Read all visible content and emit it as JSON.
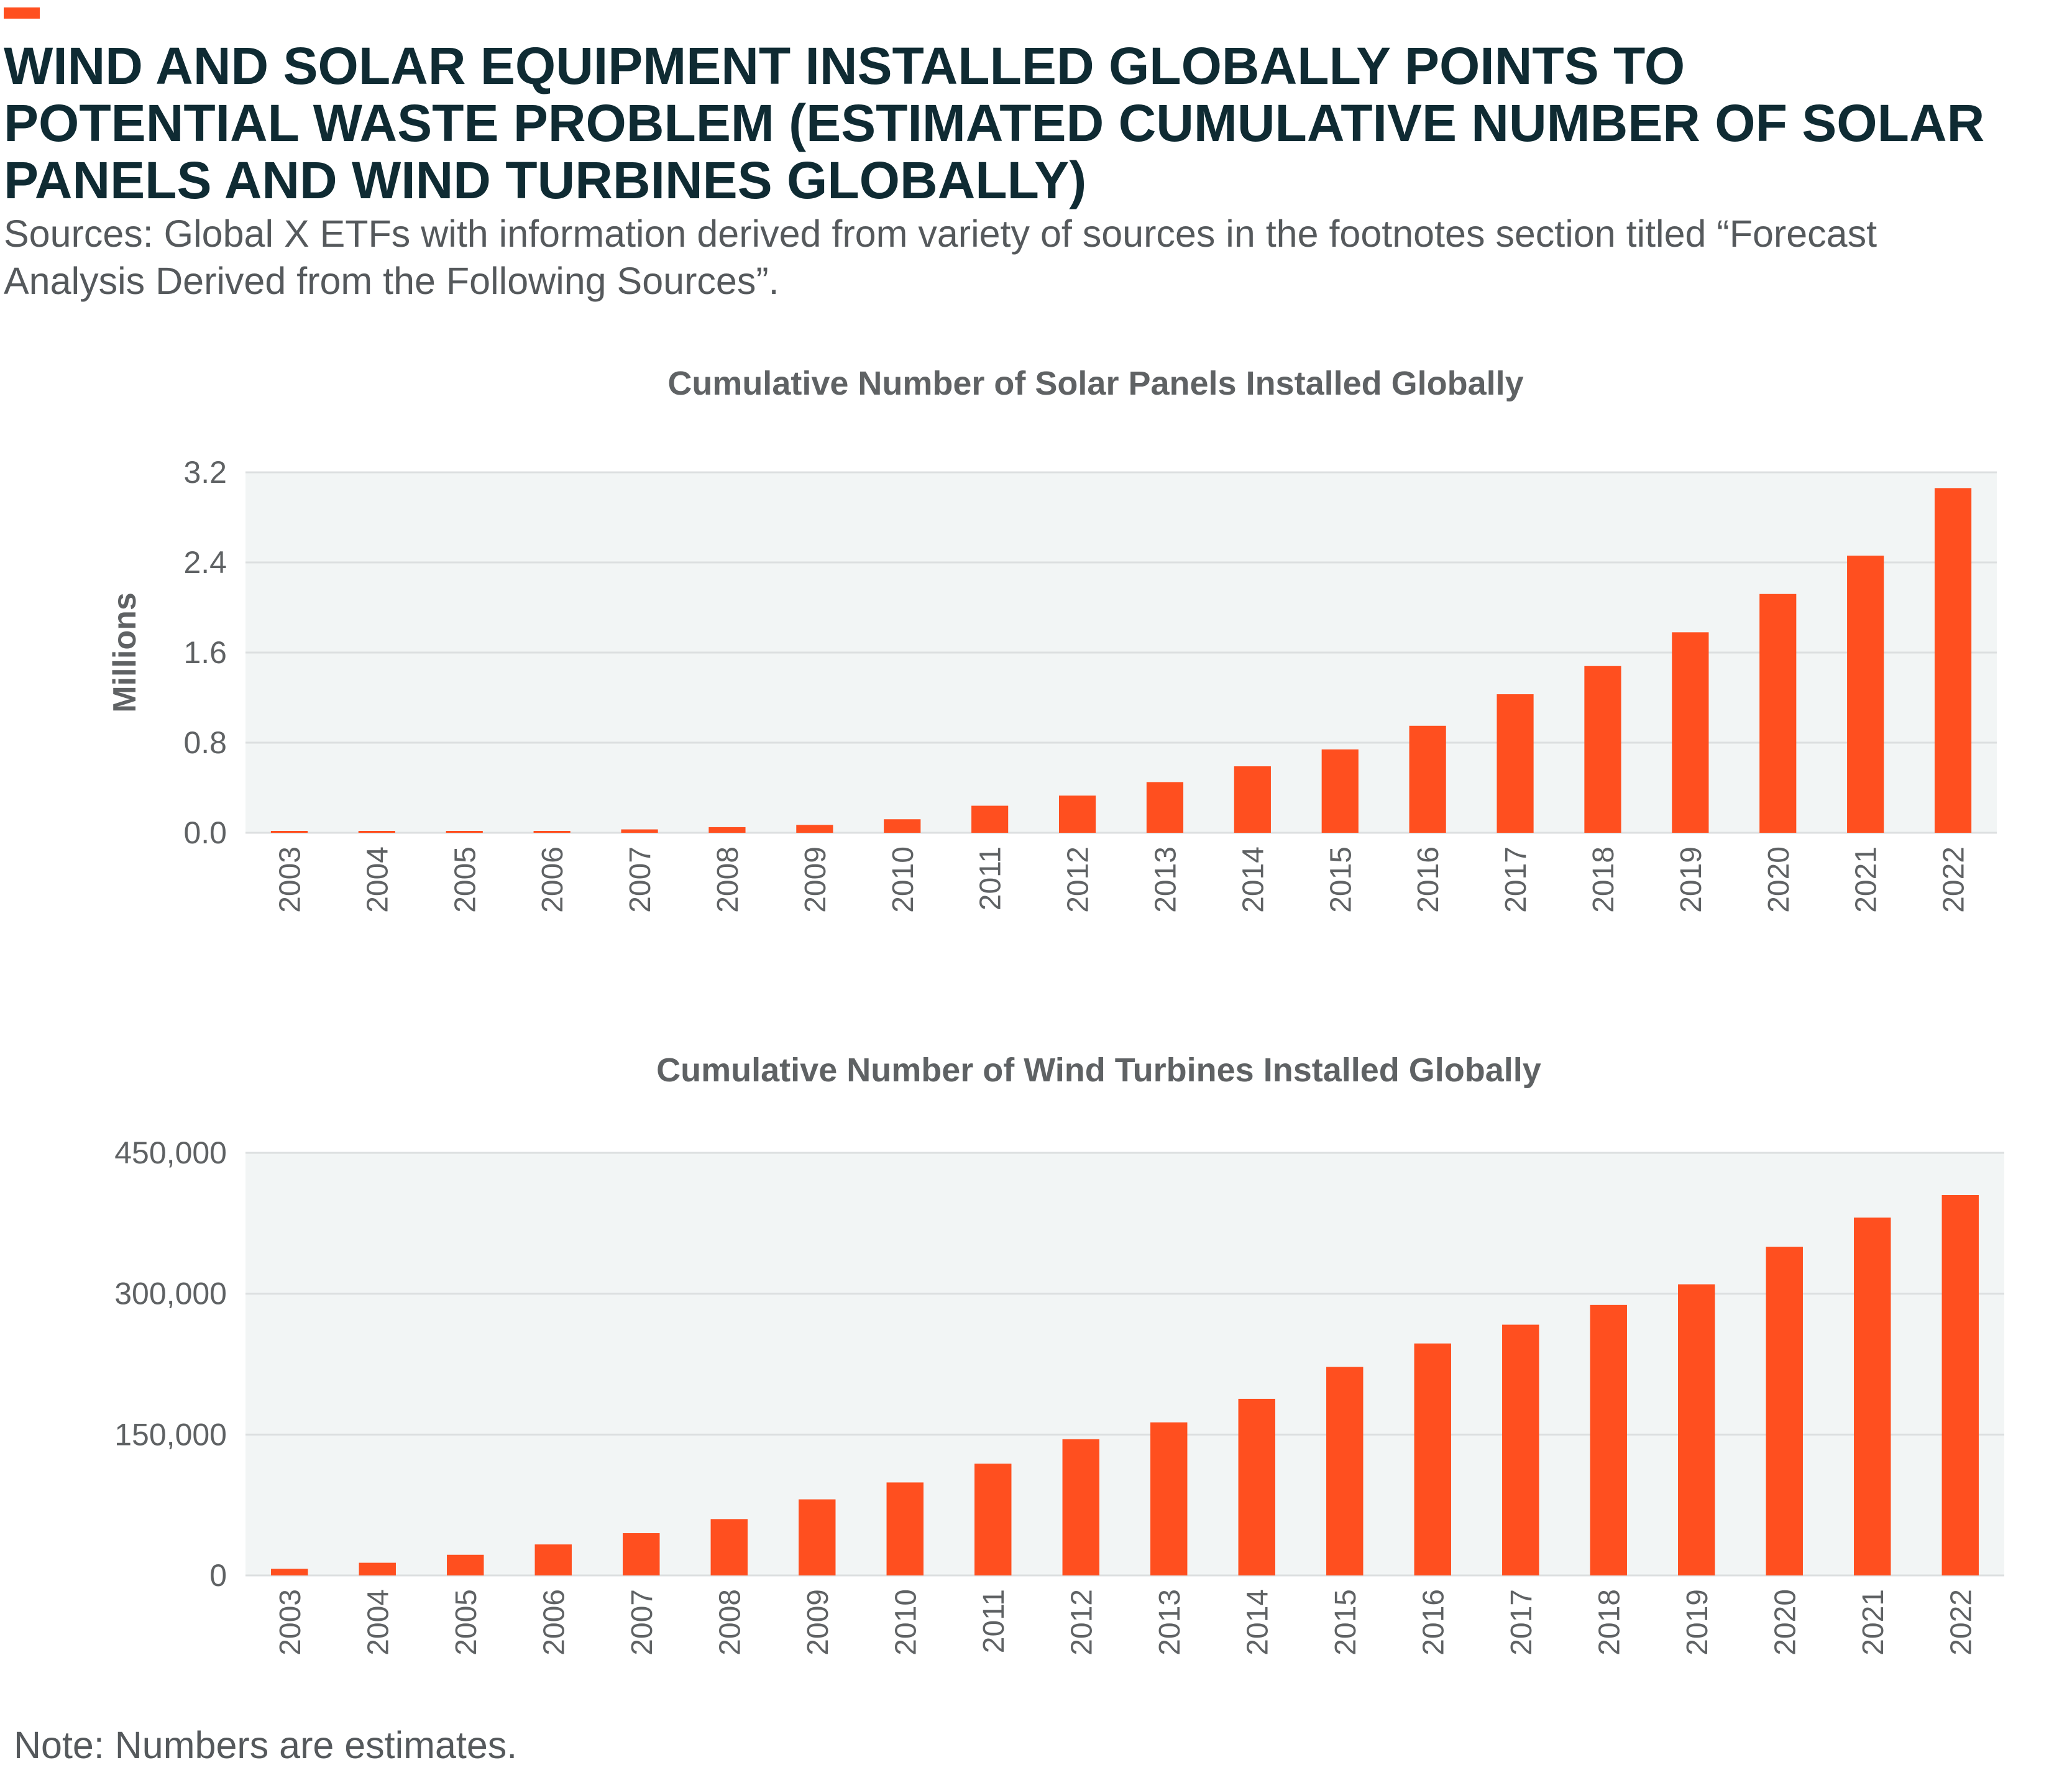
{
  "header": {
    "title": "WIND AND SOLAR EQUIPMENT INSTALLED GLOBALLY POINTS TO POTENTIAL WASTE PROBLEM (ESTIMATED CUMULATIVE NUMBER OF SOLAR PANELS AND WIND TURBINES GLOBALLY)",
    "subtitle": "Sources: Global X ETFs with information derived from variety of sources in the footnotes section titled “Forecast Analysis Derived from the Following Sources”."
  },
  "footer": {
    "note": "Note: Numbers are estimates."
  },
  "colors": {
    "accent": "#ff4f1f",
    "bar": "#ff4f1f",
    "plot_bg": "#f2f5f5",
    "grid": "#dcdfe0",
    "title": "#0f2b33",
    "text": "#5f6264"
  },
  "chart_data": [
    {
      "type": "bar",
      "title": "Cumulative Number of Solar Panels Installed Globally",
      "xlabel": "",
      "ylabel": "Millions",
      "categories": [
        "2003",
        "2004",
        "2005",
        "2006",
        "2007",
        "2008",
        "2009",
        "2010",
        "2011",
        "2012",
        "2013",
        "2014",
        "2015",
        "2016",
        "2017",
        "2018",
        "2019",
        "2020",
        "2021",
        "2022"
      ],
      "values": [
        0.01,
        0.01,
        0.01,
        0.01,
        0.03,
        0.05,
        0.07,
        0.12,
        0.24,
        0.33,
        0.45,
        0.59,
        0.74,
        0.95,
        1.23,
        1.48,
        1.78,
        2.12,
        2.46,
        3.06
      ],
      "yticks": [
        0.0,
        0.8,
        1.6,
        2.4,
        3.2
      ],
      "ytick_labels": [
        "0.0",
        "0.8",
        "1.6",
        "2.4",
        "3.2"
      ],
      "ylim": [
        0,
        3.2
      ],
      "grid": true
    },
    {
      "type": "bar",
      "title": "Cumulative Number of Wind Turbines Installed Globally",
      "xlabel": "",
      "ylabel": "",
      "categories": [
        "2003",
        "2004",
        "2005",
        "2006",
        "2007",
        "2008",
        "2009",
        "2010",
        "2011",
        "2012",
        "2013",
        "2014",
        "2015",
        "2016",
        "2017",
        "2018",
        "2019",
        "2020",
        "2021",
        "2022"
      ],
      "values": [
        7000,
        13500,
        22000,
        33000,
        45000,
        60000,
        81000,
        99000,
        119000,
        145000,
        163000,
        188000,
        222000,
        247000,
        267000,
        288000,
        310000,
        350000,
        381000,
        405000
      ],
      "yticks": [
        0,
        150000,
        300000,
        450000
      ],
      "ytick_labels": [
        "0",
        "150,000",
        "300,000",
        "450,000"
      ],
      "ylim": [
        0,
        450000
      ],
      "grid": true
    }
  ]
}
